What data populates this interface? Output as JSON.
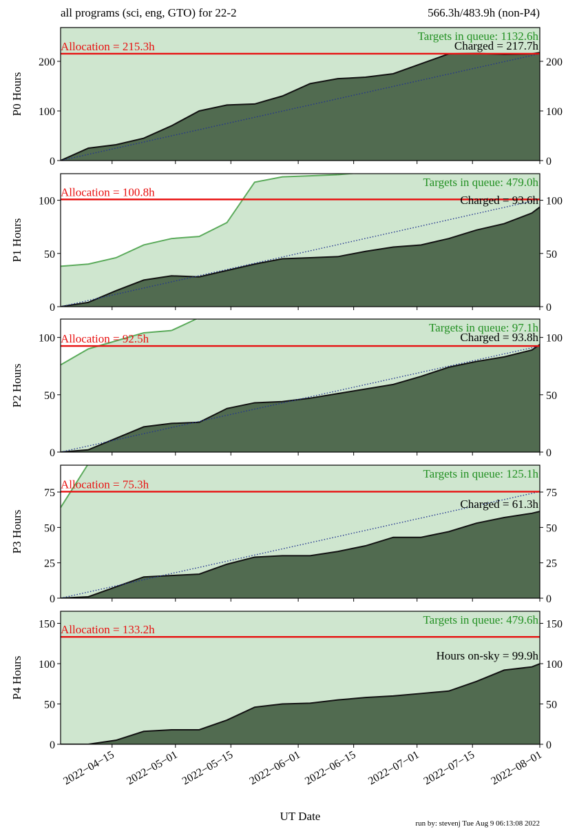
{
  "header_left": "all programs (sci, eng, GTO) for 22-2",
  "header_right": "566.3h/483.9h (non-P4)",
  "footer": "run by: stevenj Tue Aug 9 06:13:08 2022",
  "colors": {
    "queue_fill": "#cfe6cf",
    "charged_fill": "#516b50",
    "charged_line": "#111111",
    "queue_line": "#5aaa5a",
    "queue_text": "#229022",
    "allocation": "#e81010",
    "expected": "#22338f"
  },
  "x_axis": {
    "label": "UT Date",
    "x": [
      "2022-04-02",
      "2022-04-09",
      "2022-04-16",
      "2022-04-23",
      "2022-04-30",
      "2022-05-07",
      "2022-05-14",
      "2022-05-21",
      "2022-05-28",
      "2022-06-04",
      "2022-06-11",
      "2022-06-18",
      "2022-06-25",
      "2022-07-02",
      "2022-07-09",
      "2022-07-16",
      "2022-07-23",
      "2022-07-30",
      "2022-08-01"
    ],
    "xlim": [
      "2022-04-02",
      "2022-08-01"
    ],
    "xticks": [
      {
        "value": "2022-04-15",
        "label": "2022−04−15"
      },
      {
        "value": "2022-05-01",
        "label": "2022−05−01"
      },
      {
        "value": "2022-05-15",
        "label": "2022−05−15"
      },
      {
        "value": "2022-06-01",
        "label": "2022−06−01"
      },
      {
        "value": "2022-06-15",
        "label": "2022−06−15"
      },
      {
        "value": "2022-07-01",
        "label": "2022−07−01"
      },
      {
        "value": "2022-07-15",
        "label": "2022−07−15"
      },
      {
        "value": "2022-08-01",
        "label": "2022−08−01"
      }
    ]
  },
  "chart_data": [
    {
      "type": "area",
      "ylabel": "P0 Hours",
      "ylim": [
        0,
        268
      ],
      "yticks": [
        0,
        100,
        200
      ],
      "allocation": 215.3,
      "allocation_label": "Allocation = 215.3h",
      "queue_label": "Targets in queue: 1132.6h",
      "charged_label": "Charged = 217.7h",
      "expected_line": true,
      "charged_values": [
        0,
        25,
        32,
        45,
        70,
        100,
        112,
        114,
        130,
        155,
        165,
        168,
        175,
        195,
        215,
        216,
        214,
        215,
        217.7
      ]
    },
    {
      "type": "area",
      "ylabel": "P1 Hours",
      "ylim": [
        0,
        125
      ],
      "yticks": [
        0,
        50,
        100
      ],
      "allocation": 100.8,
      "allocation_label": "Allocation = 100.8h",
      "queue_label": "Targets in queue: 479.0h",
      "queue_values": [
        38,
        40,
        46,
        58,
        64,
        66,
        79,
        117,
        122,
        123,
        124,
        null,
        null,
        null,
        null,
        null,
        null,
        null,
        null
      ],
      "charged_label": "Charged = 93.6h",
      "expected_line": true,
      "charged_values": [
        0,
        4,
        15,
        25,
        29,
        28,
        34,
        40,
        45,
        46,
        47,
        52,
        56,
        58,
        64,
        72,
        78,
        88,
        93.6
      ]
    },
    {
      "type": "area",
      "ylabel": "P2 Hours",
      "ylim": [
        0,
        116
      ],
      "yticks": [
        0,
        50,
        100
      ],
      "allocation": 92.5,
      "allocation_label": "Allocation = 92.5h",
      "queue_label": "Targets in queue: 97.1h",
      "queue_values": [
        76,
        90,
        97,
        104,
        106,
        null,
        null,
        null,
        null,
        null,
        null,
        null,
        null,
        null,
        null,
        null,
        null,
        null,
        null
      ],
      "charged_label": "Charged = 93.8h",
      "expected_line": true,
      "charged_values": [
        0,
        2,
        12,
        22,
        25,
        26,
        38,
        43,
        44,
        47,
        51,
        55,
        59,
        66,
        74,
        79,
        83,
        89,
        93.8
      ]
    },
    {
      "type": "area",
      "ylabel": "P3 Hours",
      "ylim": [
        0,
        94
      ],
      "yticks": [
        0,
        25,
        50,
        75
      ],
      "allocation": 75.3,
      "allocation_label": "Allocation = 75.3h",
      "queue_label": "Targets in queue: 125.1h",
      "queue_values": [
        64,
        null,
        null,
        null,
        null,
        null,
        null,
        null,
        null,
        null,
        null,
        null,
        null,
        null,
        null,
        null,
        null,
        null,
        null
      ],
      "charged_label": "Charged = 61.3h",
      "expected_line": true,
      "charged_values": [
        0,
        1,
        8,
        15,
        16,
        17,
        24,
        29,
        30,
        30,
        33,
        37,
        43,
        43,
        47,
        53,
        57,
        60,
        61.3
      ]
    },
    {
      "type": "area",
      "ylabel": "P4 Hours",
      "ylim": [
        0,
        165
      ],
      "yticks": [
        0,
        50,
        100,
        150
      ],
      "allocation": 133.2,
      "allocation_label": "Allocation = 133.2h",
      "queue_label": "Targets in queue: 479.6h",
      "charged_label": "Hours on-sky = 99.9h",
      "expected_line": false,
      "charged_values": [
        0,
        0,
        5,
        16,
        18,
        18,
        30,
        46,
        50,
        51,
        55,
        58,
        60,
        63,
        66,
        78,
        92,
        96,
        99.9
      ]
    }
  ]
}
